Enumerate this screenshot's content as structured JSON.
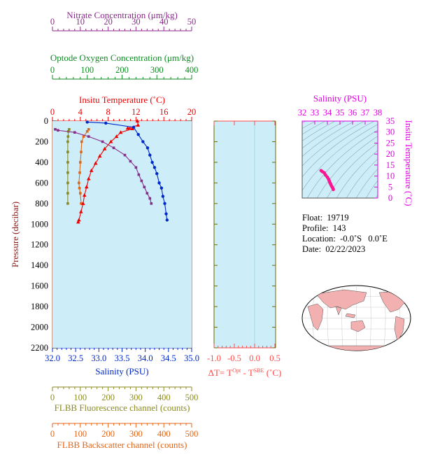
{
  "colors": {
    "nitrate": "#8b2a8b",
    "oxygen": "#108a25",
    "temperature": "#ee0000",
    "salinity": "#0028c8",
    "fluorescence": "#8a8a22",
    "backscatter": "#e0661a",
    "dt": "#ff4a4a",
    "ts": "#e000e0",
    "ts_points": "#ff1493",
    "plot_bg": "#cdeef8",
    "land": "#f3b0b0"
  },
  "main": {
    "y_title": "Pressure (decibar)",
    "y_ticks": [
      "0",
      "200",
      "400",
      "600",
      "800",
      "1000",
      "1200",
      "1400",
      "1600",
      "1800",
      "2000",
      "2200"
    ],
    "nitrate": {
      "title": "Nitrate Concentration (μm/kg)",
      "ticks": [
        "0",
        "10",
        "20",
        "30",
        "40",
        "50"
      ]
    },
    "oxygen": {
      "title": "Optode Oxygen Concentration (μm/kg)",
      "ticks": [
        "0",
        "100",
        "200",
        "300",
        "400"
      ]
    },
    "temperature": {
      "title": "Insitu Temperature (˚C)",
      "ticks": [
        "0",
        "4",
        "8",
        "12",
        "16",
        "20"
      ]
    },
    "salinity": {
      "title": "Salinity (PSU)",
      "ticks": [
        "32.0",
        "32.5",
        "33.0",
        "33.5",
        "34.0",
        "34.5",
        "35.0"
      ]
    },
    "fluorescence": {
      "title": "FLBB Fluorescence channel (counts)",
      "ticks": [
        "0",
        "100",
        "200",
        "300",
        "400",
        "500"
      ]
    },
    "backscatter": {
      "title": "FLBB Backscatter channel (counts)",
      "ticks": [
        "0",
        "100",
        "200",
        "300",
        "400",
        "500"
      ]
    }
  },
  "dt_panel": {
    "ticks": [
      "-1.0",
      "-0.5",
      "0.0",
      "0.5"
    ],
    "title_prefix": "ΔT= T",
    "sup1": "Opt",
    "title_mid": " - T",
    "sup2": "SBE",
    "title_suffix": " (˚C)"
  },
  "ts_panel": {
    "title": "Salinity (PSU)",
    "x_ticks": [
      "32",
      "33",
      "34",
      "35",
      "36",
      "37",
      "38"
    ],
    "y_title": "Insitu Temperature (˚C)",
    "y_ticks": [
      "0",
      "5",
      "10",
      "15",
      "20",
      "25",
      "30",
      "35"
    ]
  },
  "info": {
    "float": "Float:  19719",
    "profile": "Profile:  143",
    "location": "Location:  -0.0˚S   0.0˚E",
    "date": "Date:  02/22/2023"
  },
  "chart_data": [
    {
      "type": "line",
      "name": "Nitrate",
      "axis_range": [
        0,
        50
      ],
      "points": [
        [
          1,
          80
        ],
        [
          2,
          90
        ],
        [
          8,
          110
        ],
        [
          13,
          150
        ],
        [
          18,
          200
        ],
        [
          22,
          260
        ],
        [
          26,
          330
        ],
        [
          28,
          390
        ],
        [
          30,
          450
        ],
        [
          31,
          520
        ],
        [
          32,
          580
        ],
        [
          33,
          640
        ],
        [
          34,
          700
        ],
        [
          35,
          750
        ],
        [
          35.5,
          800
        ]
      ]
    },
    {
      "type": "line",
      "name": "Insitu Temperature",
      "axis_range": [
        0,
        20
      ],
      "points": [
        [
          12.2,
          0
        ],
        [
          12.3,
          40
        ],
        [
          10.8,
          70
        ],
        [
          11.5,
          75
        ],
        [
          9.8,
          110
        ],
        [
          9.2,
          150
        ],
        [
          8.4,
          200
        ],
        [
          7.5,
          270
        ],
        [
          6.8,
          340
        ],
        [
          6.2,
          410
        ],
        [
          5.6,
          480
        ],
        [
          5.2,
          560
        ],
        [
          4.9,
          640
        ],
        [
          4.6,
          720
        ],
        [
          4.4,
          800
        ],
        [
          4.1,
          880
        ],
        [
          3.8,
          960
        ],
        [
          3.7,
          980
        ]
      ]
    },
    {
      "type": "line",
      "name": "Salinity",
      "axis_range": [
        32.0,
        35.0
      ],
      "points": [
        [
          32.75,
          0
        ],
        [
          32.75,
          10
        ],
        [
          33.15,
          20
        ],
        [
          33.75,
          60
        ],
        [
          33.85,
          130
        ],
        [
          33.95,
          200
        ],
        [
          34.05,
          260
        ],
        [
          34.1,
          330
        ],
        [
          34.15,
          400
        ],
        [
          34.2,
          450
        ],
        [
          34.25,
          510
        ],
        [
          34.3,
          600
        ],
        [
          34.35,
          650
        ],
        [
          34.38,
          730
        ],
        [
          34.42,
          800
        ],
        [
          34.45,
          900
        ],
        [
          34.47,
          960
        ]
      ]
    },
    {
      "type": "line",
      "name": "FLBB Fluorescence",
      "axis_range": [
        0,
        500
      ],
      "points": [
        [
          60,
          80
        ],
        [
          57,
          100
        ],
        [
          56,
          150
        ],
        [
          55,
          200
        ],
        [
          55,
          300
        ],
        [
          55,
          400
        ],
        [
          55,
          500
        ],
        [
          55,
          600
        ],
        [
          55,
          700
        ],
        [
          55,
          800
        ]
      ]
    },
    {
      "type": "line",
      "name": "FLBB Backscatter",
      "axis_range": [
        0,
        500
      ],
      "points": [
        [
          130,
          80
        ],
        [
          125,
          100
        ],
        [
          112,
          150
        ],
        [
          105,
          200
        ],
        [
          103,
          300
        ],
        [
          100,
          400
        ],
        [
          98,
          500
        ],
        [
          95,
          600
        ],
        [
          97,
          650
        ],
        [
          100,
          700
        ],
        [
          103,
          800
        ]
      ]
    },
    {
      "type": "scatter",
      "name": "T-S",
      "x_range": [
        32,
        38
      ],
      "y_range": [
        0,
        35
      ],
      "points": [
        [
          33.5,
          12.5
        ],
        [
          33.6,
          12.0
        ],
        [
          33.75,
          11.5
        ],
        [
          33.85,
          10.5
        ],
        [
          34.0,
          9.5
        ],
        [
          34.1,
          8.5
        ],
        [
          34.15,
          7.8
        ],
        [
          34.2,
          7.0
        ],
        [
          34.25,
          6.5
        ],
        [
          34.3,
          5.8
        ],
        [
          34.35,
          5.3
        ],
        [
          34.4,
          4.8
        ],
        [
          34.45,
          4.3
        ],
        [
          34.47,
          3.9
        ]
      ]
    }
  ]
}
